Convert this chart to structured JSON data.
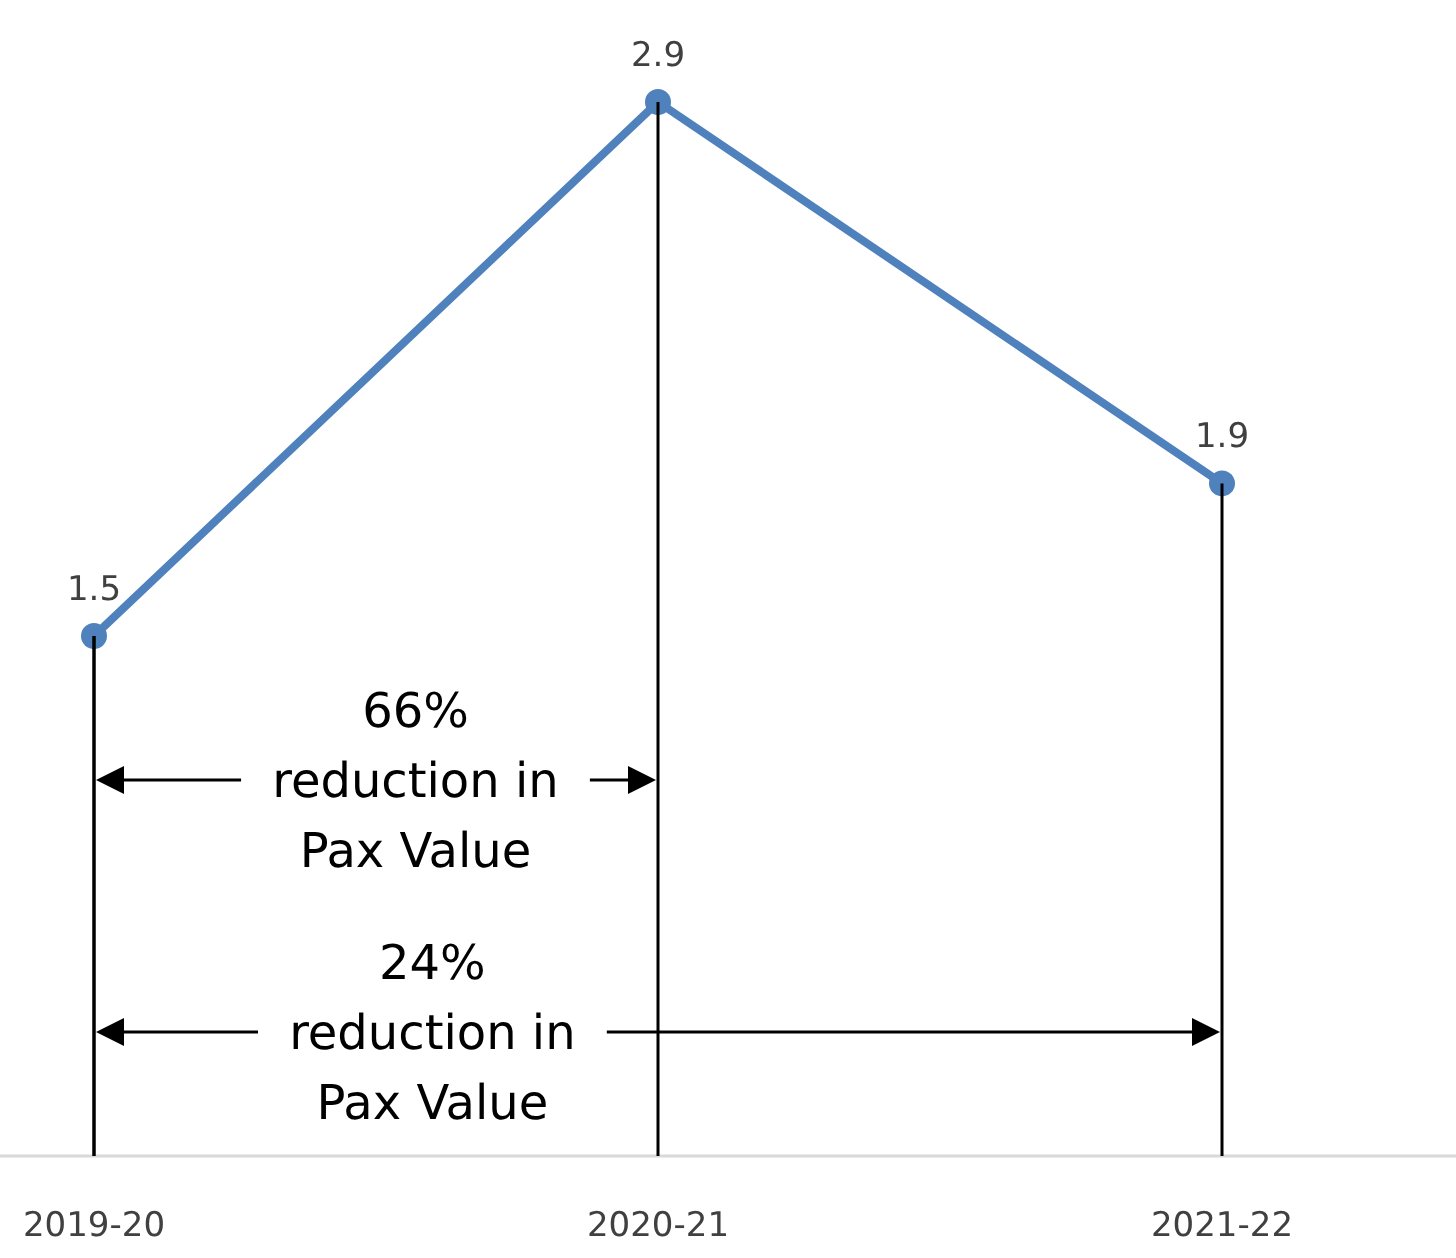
{
  "chart_data": {
    "type": "line",
    "categories": [
      "2019-20",
      "2020-21",
      "2021-22"
    ],
    "series": [
      {
        "color": "#4f81bd",
        "values": [
          1.5,
          2.9,
          1.9
        ]
      }
    ],
    "marker": "circle",
    "data_labels": true,
    "annotations": [
      "66% reduction in Pax Value",
      "24% reduction in Pax Value"
    ]
  }
}
